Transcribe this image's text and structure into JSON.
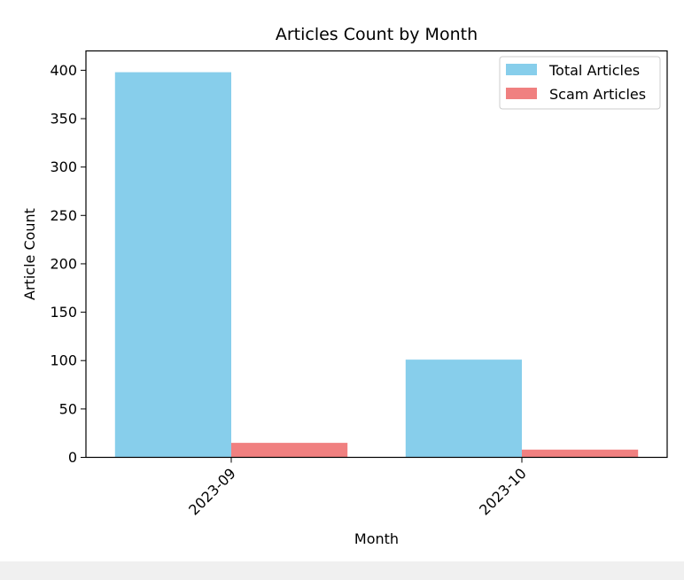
{
  "chart_data": {
    "type": "bar",
    "title": "Articles Count by Month",
    "xlabel": "Month",
    "ylabel": "Article Count",
    "categories": [
      "2023-09",
      "2023-10"
    ],
    "series": [
      {
        "name": "Total Articles",
        "values": [
          398,
          101
        ],
        "color": "#87ceeb"
      },
      {
        "name": "Scam Articles",
        "values": [
          15,
          8
        ],
        "color": "#f08080"
      }
    ],
    "ylim": [
      0,
      420
    ],
    "yticks": [
      0,
      50,
      100,
      150,
      200,
      250,
      300,
      350,
      400
    ],
    "grid": false,
    "legend_position": "top-right"
  }
}
